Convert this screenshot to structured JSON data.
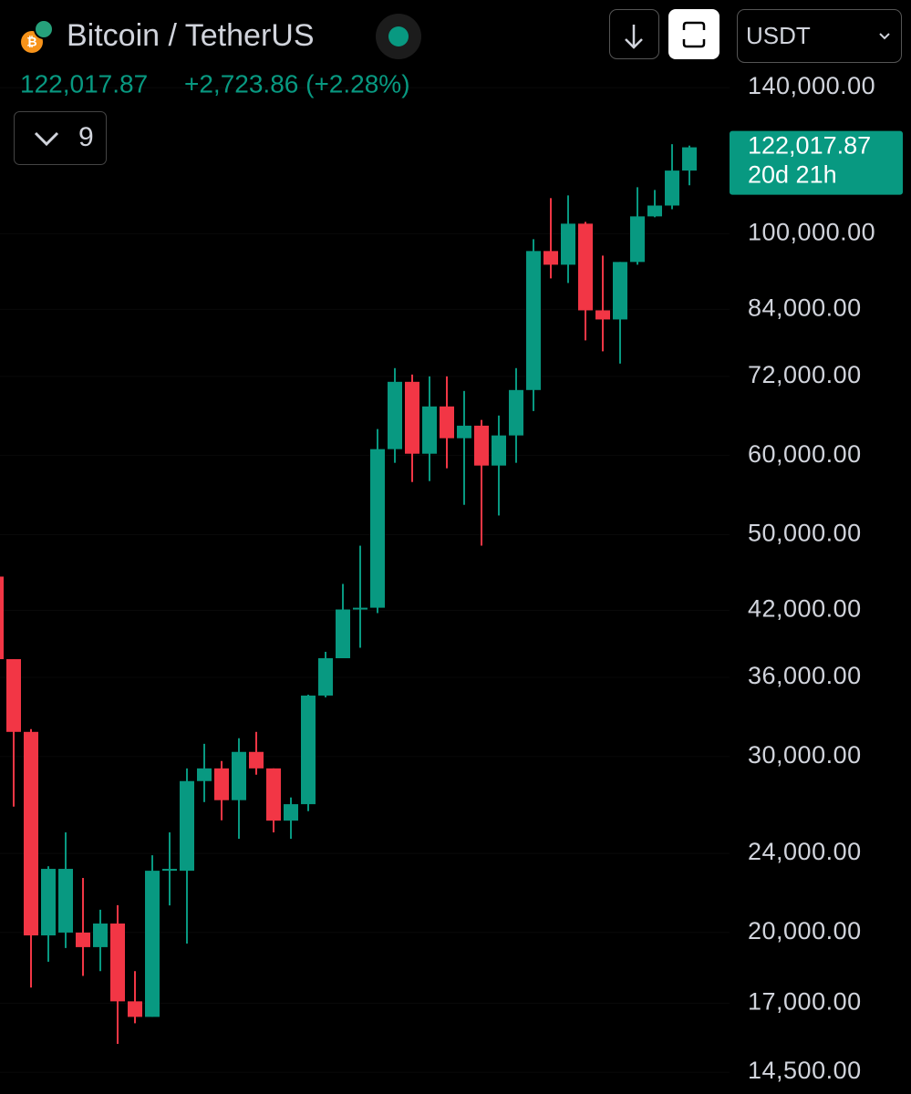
{
  "header": {
    "title": "Bitcoin / TetherUS",
    "last_price": "122,017.87",
    "change": "+2,723.86 (+2.28%)",
    "indicators": "9",
    "currency": "USDT"
  },
  "chart_data": {
    "type": "candlestick",
    "log_scale": true,
    "up_color": "#089981",
    "down_color": "#f23645",
    "ylim": [
      13790,
      171300
    ],
    "yticks": [
      {
        "value": 140000,
        "label": "140,000.00"
      },
      {
        "value": 100000,
        "label": "100,000.00"
      },
      {
        "value": 84000,
        "label": "84,000.00"
      },
      {
        "value": 72000,
        "label": "72,000.00"
      },
      {
        "value": 60000,
        "label": "60,000.00"
      },
      {
        "value": 50000,
        "label": "50,000.00"
      },
      {
        "value": 42000,
        "label": "42,000.00"
      },
      {
        "value": 36000,
        "label": "36,000.00"
      },
      {
        "value": 30000,
        "label": "30,000.00"
      },
      {
        "value": 24000,
        "label": "24,000.00"
      },
      {
        "value": 20000,
        "label": "20,000.00"
      },
      {
        "value": 17000,
        "label": "17,000.00"
      },
      {
        "value": 14500,
        "label": "14,500.00"
      }
    ],
    "open": [
      45400,
      37540,
      31750,
      19870,
      20000,
      20000,
      19340,
      20420,
      17070,
      16470,
      23060,
      23060,
      28350,
      29190,
      27130,
      30320,
      29190,
      25880,
      26880,
      34520,
      37620,
      42090,
      42260,
      60890,
      71100,
      60250,
      67180,
      62440,
      64270,
      58630,
      62840,
      69770,
      96090,
      93110,
      102340,
      83820,
      82080,
      93700,
      104070,
      106700,
      115650
    ],
    "high": [
      45400,
      37540,
      31950,
      23300,
      25190,
      22680,
      21080,
      21300,
      18300,
      23900,
      25190,
      29190,
      30890,
      29690,
      31290,
      31750,
      29190,
      27300,
      34590,
      38180,
      44640,
      48750,
      63770,
      73380,
      72300,
      72000,
      72000,
      69620,
      65130,
      65790,
      73380,
      98750,
      108540,
      109220,
      102770,
      95080,
      93700,
      111300,
      110600,
      122900,
      122500
    ],
    "low": [
      37540,
      26730,
      17620,
      18700,
      19300,
      18100,
      18300,
      15480,
      16230,
      16470,
      21290,
      19500,
      27010,
      25900,
      24820,
      28770,
      25190,
      24820,
      26450,
      34380,
      37800,
      38540,
      41740,
      59000,
      56450,
      56570,
      58260,
      53560,
      48750,
      52260,
      59000,
      66480,
      90220,
      89270,
      78210,
      76270,
      74150,
      93110,
      103860,
      105800,
      111800
    ],
    "close": [
      37540,
      31750,
      19870,
      23160,
      23160,
      19340,
      20420,
      17070,
      16470,
      23060,
      23160,
      28350,
      29190,
      27130,
      30320,
      29190,
      25880,
      26880,
      34520,
      37620,
      42090,
      42260,
      60890,
      71100,
      60250,
      67180,
      62440,
      64270,
      58630,
      62840,
      69770,
      96090,
      93110,
      102340,
      83820,
      82080,
      93700,
      104070,
      106700,
      115650,
      122017.87
    ],
    "last_price_label": "122,017.87",
    "countdown": "20d 21h"
  }
}
